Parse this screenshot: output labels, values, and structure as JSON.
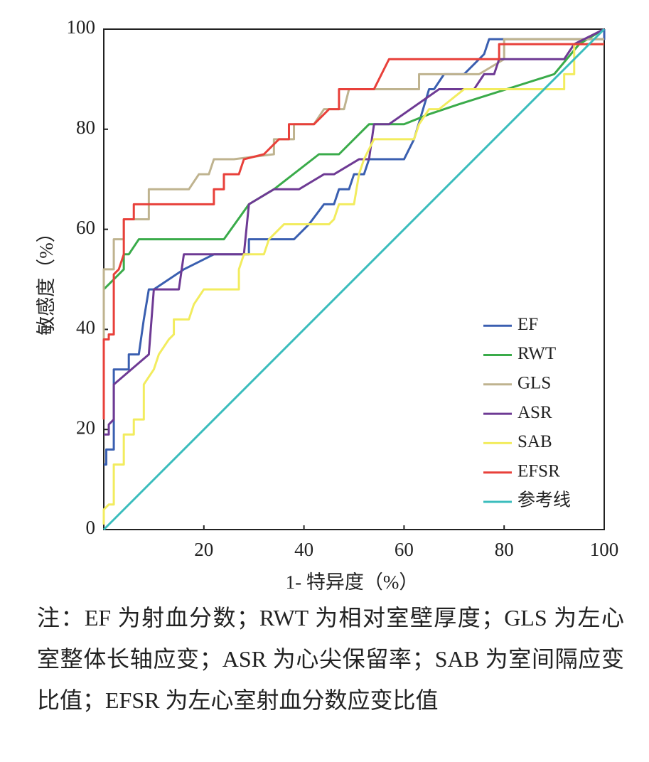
{
  "chart_data": {
    "type": "line",
    "xlabel": "1- 特异度（%）",
    "ylabel": "敏感度（%）",
    "xlim": [
      0,
      100
    ],
    "ylim": [
      0,
      100
    ],
    "xticks": [
      20,
      40,
      60,
      80,
      100
    ],
    "yticks": [
      0,
      20,
      40,
      60,
      80,
      100
    ],
    "legend": "lower right",
    "series": [
      {
        "name": "EF",
        "color": "#3a5fb0",
        "x": [
          0,
          0.5,
          0.5,
          2,
          2,
          5,
          5,
          7,
          8,
          9,
          10,
          16,
          22,
          29,
          29,
          38,
          41,
          44,
          46,
          47,
          49,
          50,
          52,
          53,
          60,
          62,
          65,
          66,
          68,
          72,
          76,
          77,
          82,
          100,
          100
        ],
        "values": [
          13,
          13,
          16,
          16,
          32,
          32,
          35,
          35,
          42,
          48,
          48,
          52,
          55,
          55,
          58,
          58,
          61,
          65,
          65,
          68,
          68,
          71,
          71,
          74,
          74,
          78,
          88,
          88,
          91,
          91,
          95,
          98,
          98,
          98,
          100
        ]
      },
      {
        "name": "RWT",
        "color": "#3aab4a",
        "x": [
          0,
          2,
          4,
          4,
          5,
          7,
          24,
          29,
          34,
          43,
          47,
          53,
          60,
          65,
          71,
          90,
          95,
          100
        ],
        "values": [
          48,
          50,
          52,
          55,
          55,
          58,
          58,
          65,
          68,
          75,
          75,
          81,
          81,
          83,
          85,
          91,
          97,
          100
        ]
      },
      {
        "name": "GLS",
        "color": "#bfb38f",
        "x": [
          0,
          0,
          2,
          2,
          4,
          4,
          9,
          9,
          17,
          19,
          21,
          22,
          26,
          34,
          34,
          38,
          38,
          42,
          44,
          48,
          49,
          63,
          63,
          75,
          80,
          80,
          100
        ],
        "values": [
          22,
          52,
          52,
          58,
          58,
          62,
          62,
          68,
          68,
          71,
          71,
          74,
          74,
          75,
          78,
          78,
          81,
          81,
          84,
          84,
          88,
          88,
          91,
          91,
          94,
          98,
          98
        ]
      },
      {
        "name": "ASR",
        "color": "#6e3a94",
        "x": [
          0,
          1,
          1,
          2,
          2,
          9,
          10,
          15,
          16,
          28,
          29,
          34,
          39,
          44,
          46,
          51,
          53,
          54,
          57,
          67,
          74,
          76,
          78,
          79,
          92,
          94,
          100
        ],
        "values": [
          19,
          19,
          21,
          22,
          29,
          35,
          48,
          48,
          55,
          55,
          65,
          68,
          68,
          71,
          71,
          74,
          74,
          81,
          81,
          88,
          88,
          91,
          91,
          94,
          94,
          97,
          100
        ]
      },
      {
        "name": "SAB",
        "color": "#f2ec5e",
        "x": [
          0,
          0,
          1,
          2,
          2,
          4,
          4,
          6,
          6,
          8,
          8,
          10,
          11,
          13,
          14,
          14,
          17,
          18,
          20,
          27,
          27,
          28,
          32,
          33,
          36,
          45,
          46,
          47,
          50,
          51,
          52,
          54,
          62,
          63,
          65,
          67,
          72,
          92,
          92,
          94,
          94,
          100
        ],
        "values": [
          1,
          4,
          5,
          5,
          13,
          13,
          19,
          19,
          22,
          22,
          29,
          32,
          35,
          38,
          39,
          42,
          42,
          45,
          48,
          48,
          52,
          55,
          55,
          58,
          61,
          61,
          62,
          65,
          65,
          71,
          74,
          78,
          78,
          81,
          84,
          84,
          88,
          88,
          91,
          91,
          97,
          97
        ]
      },
      {
        "name": "EFSR",
        "color": "#e8403a",
        "x": [
          0,
          0,
          1,
          1,
          2,
          2,
          3,
          4,
          4,
          6,
          6,
          22,
          22,
          24,
          24,
          27,
          28,
          32,
          35,
          37,
          37,
          42,
          45,
          47,
          47,
          54,
          57,
          79,
          79,
          100
        ],
        "values": [
          22,
          38,
          38,
          39,
          39,
          51,
          52,
          55,
          62,
          62,
          65,
          65,
          68,
          68,
          71,
          71,
          74,
          75,
          78,
          78,
          81,
          81,
          84,
          84,
          88,
          88,
          94,
          94,
          97,
          97
        ]
      },
      {
        "name": "参考线",
        "color": "#3bbdbd",
        "x": [
          0,
          100
        ],
        "values": [
          0,
          100
        ]
      }
    ]
  },
  "note": "注：EF 为射血分数；RWT 为相对室壁厚度；GLS 为左心室整体长轴应变；ASR 为心尖保留率；SAB 为室间隔应变比值；EFSR 为左心室射血分数应变比值"
}
